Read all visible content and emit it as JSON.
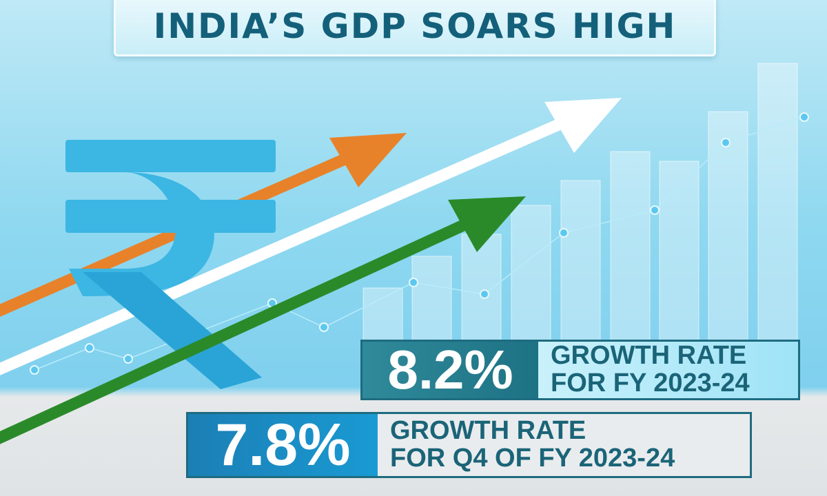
{
  "title": "INDIA’S GDP SOARS HIGH",
  "stats": [
    {
      "value": "8.2%",
      "line1": "GROWTH RATE",
      "line2": "FOR FY 2023-24"
    },
    {
      "value": "7.8%",
      "line1": "GROWTH RATE",
      "line2": "FOR Q4 OF FY 2023-24"
    }
  ],
  "colors": {
    "title_text": "#14607a",
    "rupee": "#3cb6e3",
    "orange_arrow": "#e8822a",
    "green_arrow": "#2a8a2a",
    "white_arrow": "#ffffff"
  },
  "icons": [
    "rupee-symbol-icon",
    "growth-arrow-icon",
    "bar-chart-illustration"
  ]
}
